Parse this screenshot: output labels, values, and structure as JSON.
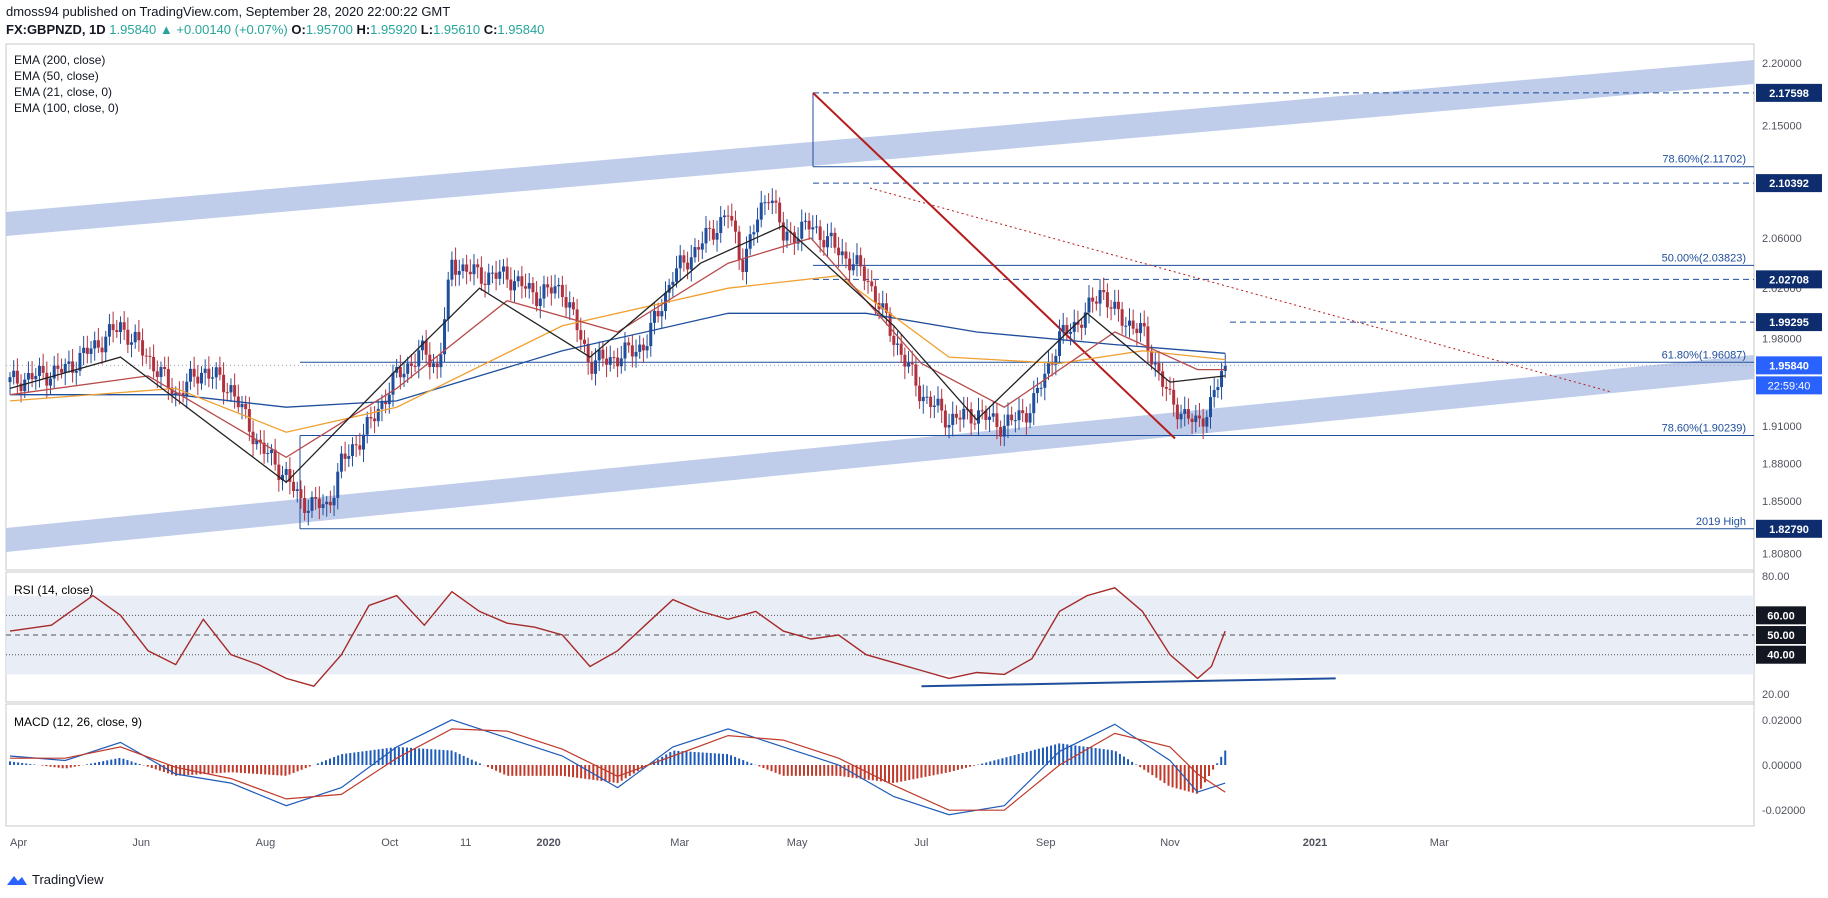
{
  "header": {
    "published_line": "dmoss94 published on TradingView.com, September 28, 2020 22:00:22 GMT",
    "symbol": "FX:GBPNZD, 1D",
    "last": "1.95840",
    "change": "+0.00140 (+0.07%)",
    "open": "1.95700",
    "high": "1.95920",
    "low": "1.95610",
    "close": "1.95840"
  },
  "legend": {
    "main": [
      "EMA (200, close)",
      "EMA (50, close)",
      "EMA (21, close, 0)",
      "EMA (100, close, 0)"
    ],
    "rsi": "RSI (14, close)",
    "macd": "MACD (12, 26, close, 9)"
  },
  "footer": {
    "brand": "TradingView"
  },
  "colors": {
    "candle_up": "#1f4e9c",
    "candle_down": "#b0323e",
    "ema200": "#1f4e9c",
    "ema50": "#b84a4a",
    "ema21": "#222222",
    "ema100": "#f0a030",
    "channel": "#b8c8e8",
    "trendline": "#b71c1c",
    "rsi_line": "#a52a2a",
    "macd_line": "#1e5bb8",
    "signal_line": "#c0392b"
  },
  "chart_data": [
    {
      "type": "line",
      "title": "",
      "price_axis_ticks": [
        "2.20000",
        "2.15000",
        "2.10000",
        "2.06000",
        "2.02000",
        "1.98000",
        "1.94000",
        "1.91000",
        "1.88000",
        "1.85000",
        "1.80800"
      ],
      "price_axis_tick_values": [
        2.2,
        2.15,
        2.1,
        2.06,
        2.02,
        1.98,
        1.94,
        1.91,
        1.88,
        1.85,
        1.808
      ],
      "time_axis_ticks": [
        "Apr",
        "Jun",
        "Aug",
        "Oct",
        "11",
        "2020",
        "Mar",
        "May",
        "Jul",
        "Sep",
        "Nov",
        "2021",
        "Mar"
      ],
      "ylim": [
        1.795,
        2.215
      ],
      "price_labels": [
        {
          "label": "2.17598",
          "value": 2.17598
        },
        {
          "label": "2.10392",
          "value": 2.10392
        },
        {
          "label": "2.02708",
          "value": 2.02708
        },
        {
          "label": "1.99295",
          "value": 1.99295
        },
        {
          "label": "1.95840",
          "value": 1.9584
        },
        {
          "label": "1.82790",
          "value": 1.8279
        }
      ],
      "countdown_label": "22:59:40",
      "fib_levels": [
        {
          "label": "78.60%(2.11702)",
          "value": 2.11702
        },
        {
          "label": "50.00%(2.03823)",
          "value": 2.03823
        },
        {
          "label": "61.80%(1.96087)",
          "value": 1.96087
        },
        {
          "label": "78.60%(1.90239)",
          "value": 1.90239
        },
        {
          "label": "2019 High",
          "value": 1.8279
        }
      ],
      "close_path": [
        [
          0,
          1.945
        ],
        [
          4,
          1.955
        ],
        [
          8,
          1.99
        ],
        [
          10,
          1.965
        ],
        [
          12,
          1.935
        ],
        [
          14,
          1.955
        ],
        [
          16,
          1.94
        ],
        [
          18,
          1.895
        ],
        [
          20,
          1.87
        ],
        [
          21,
          1.85
        ],
        [
          23,
          1.845
        ],
        [
          24,
          1.88
        ],
        [
          26,
          1.91
        ],
        [
          28,
          1.95
        ],
        [
          30,
          1.97
        ],
        [
          31,
          1.955
        ],
        [
          32,
          2.04
        ],
        [
          34,
          2.03
        ],
        [
          36,
          2.03
        ],
        [
          38,
          2.015
        ],
        [
          40,
          2.02
        ],
        [
          41,
          1.99
        ],
        [
          42,
          1.96
        ],
        [
          44,
          1.965
        ],
        [
          46,
          1.975
        ],
        [
          48,
          2.03
        ],
        [
          50,
          2.055
        ],
        [
          52,
          2.08
        ],
        [
          53,
          2.04
        ],
        [
          55,
          2.1
        ],
        [
          56,
          2.06
        ],
        [
          58,
          2.07
        ],
        [
          60,
          2.05
        ],
        [
          62,
          2.03
        ],
        [
          64,
          1.98
        ],
        [
          66,
          1.935
        ],
        [
          68,
          1.915
        ],
        [
          70,
          1.92
        ],
        [
          72,
          1.91
        ],
        [
          74,
          1.925
        ],
        [
          76,
          1.98
        ],
        [
          78,
          2.0
        ],
        [
          79,
          2.02
        ],
        [
          80,
          2.0
        ],
        [
          82,
          1.985
        ],
        [
          84,
          1.93
        ],
        [
          86,
          1.91
        ],
        [
          87,
          1.93
        ],
        [
          88,
          1.958
        ]
      ],
      "x_domain": [
        0,
        126
      ],
      "series": [
        {
          "name": "EMA (200, close)",
          "values": [
            [
              0,
              1.935
            ],
            [
              12,
              1.935
            ],
            [
              20,
              1.925
            ],
            [
              28,
              1.93
            ],
            [
              40,
              1.97
            ],
            [
              52,
              2.0
            ],
            [
              62,
              2.0
            ],
            [
              70,
              1.985
            ],
            [
              80,
              1.975
            ],
            [
              88,
              1.968
            ]
          ]
        },
        {
          "name": "EMA (100, close, 0)",
          "values": [
            [
              0,
              1.93
            ],
            [
              12,
              1.94
            ],
            [
              20,
              1.905
            ],
            [
              28,
              1.925
            ],
            [
              40,
              1.99
            ],
            [
              52,
              2.02
            ],
            [
              60,
              2.03
            ],
            [
              68,
              1.965
            ],
            [
              76,
              1.96
            ],
            [
              82,
              1.97
            ],
            [
              88,
              1.963
            ]
          ]
        },
        {
          "name": "EMA (50, close)",
          "values": [
            [
              0,
              1.935
            ],
            [
              10,
              1.95
            ],
            [
              20,
              1.885
            ],
            [
              28,
              1.94
            ],
            [
              36,
              2.01
            ],
            [
              44,
              1.985
            ],
            [
              52,
              2.04
            ],
            [
              58,
              2.06
            ],
            [
              66,
              1.96
            ],
            [
              72,
              1.925
            ],
            [
              80,
              1.985
            ],
            [
              86,
              1.955
            ],
            [
              88,
              1.955
            ]
          ]
        },
        {
          "name": "EMA (21, close, 0)",
          "values": [
            [
              0,
              1.94
            ],
            [
              8,
              1.965
            ],
            [
              20,
              1.865
            ],
            [
              28,
              1.955
            ],
            [
              34,
              2.02
            ],
            [
              42,
              1.965
            ],
            [
              50,
              2.04
            ],
            [
              56,
              2.07
            ],
            [
              64,
              1.99
            ],
            [
              70,
              1.915
            ],
            [
              78,
              2.0
            ],
            [
              84,
              1.945
            ],
            [
              88,
              1.95
            ]
          ]
        }
      ]
    },
    {
      "type": "line",
      "title": "RSI (14, close)",
      "axis_ticks": [
        "80.00",
        "60.00",
        "50.00",
        "40.00",
        "20.00"
      ],
      "axis_tick_values": [
        80,
        60,
        50,
        40,
        20
      ],
      "ylim": [
        16,
        82
      ],
      "series": [
        {
          "name": "RSI (14, close)",
          "values": [
            [
              0,
              52
            ],
            [
              3,
              55
            ],
            [
              6,
              70
            ],
            [
              8,
              60
            ],
            [
              10,
              42
            ],
            [
              12,
              35
            ],
            [
              14,
              58
            ],
            [
              16,
              40
            ],
            [
              18,
              35
            ],
            [
              20,
              28
            ],
            [
              22,
              24
            ],
            [
              24,
              40
            ],
            [
              26,
              65
            ],
            [
              28,
              70
            ],
            [
              30,
              55
            ],
            [
              32,
              72
            ],
            [
              34,
              62
            ],
            [
              36,
              56
            ],
            [
              38,
              54
            ],
            [
              40,
              50
            ],
            [
              42,
              34
            ],
            [
              44,
              42
            ],
            [
              46,
              55
            ],
            [
              48,
              68
            ],
            [
              50,
              62
            ],
            [
              52,
              58
            ],
            [
              54,
              62
            ],
            [
              56,
              52
            ],
            [
              58,
              48
            ],
            [
              60,
              50
            ],
            [
              62,
              40
            ],
            [
              64,
              36
            ],
            [
              66,
              32
            ],
            [
              68,
              28
            ],
            [
              70,
              31
            ],
            [
              72,
              30
            ],
            [
              74,
              38
            ],
            [
              76,
              62
            ],
            [
              78,
              70
            ],
            [
              80,
              74
            ],
            [
              82,
              62
            ],
            [
              84,
              40
            ],
            [
              86,
              28
            ],
            [
              87,
              34
            ],
            [
              88,
              52
            ]
          ]
        }
      ]
    },
    {
      "type": "line",
      "title": "MACD (12, 26, close, 9)",
      "axis_ticks": [
        "0.02000",
        "0.00000",
        "-0.02000"
      ],
      "axis_tick_values": [
        0.02,
        0,
        -0.02
      ],
      "ylim": [
        -0.027,
        0.027
      ],
      "series": [
        {
          "name": "MACD",
          "values": [
            [
              0,
              0.004
            ],
            [
              4,
              0.002
            ],
            [
              8,
              0.01
            ],
            [
              12,
              -0.004
            ],
            [
              16,
              -0.008
            ],
            [
              20,
              -0.018
            ],
            [
              24,
              -0.01
            ],
            [
              28,
              0.008
            ],
            [
              32,
              0.02
            ],
            [
              36,
              0.012
            ],
            [
              40,
              0.004
            ],
            [
              44,
              -0.01
            ],
            [
              48,
              0.008
            ],
            [
              52,
              0.016
            ],
            [
              56,
              0.008
            ],
            [
              60,
              0.0
            ],
            [
              64,
              -0.014
            ],
            [
              68,
              -0.022
            ],
            [
              72,
              -0.018
            ],
            [
              76,
              0.006
            ],
            [
              80,
              0.018
            ],
            [
              84,
              0.002
            ],
            [
              86,
              -0.012
            ],
            [
              88,
              -0.008
            ]
          ]
        },
        {
          "name": "Signal",
          "values": [
            [
              0,
              0.003
            ],
            [
              4,
              0.003
            ],
            [
              8,
              0.008
            ],
            [
              12,
              -0.001
            ],
            [
              16,
              -0.006
            ],
            [
              20,
              -0.015
            ],
            [
              24,
              -0.013
            ],
            [
              28,
              0.003
            ],
            [
              32,
              0.016
            ],
            [
              36,
              0.015
            ],
            [
              40,
              0.007
            ],
            [
              44,
              -0.005
            ],
            [
              48,
              0.004
            ],
            [
              52,
              0.013
            ],
            [
              56,
              0.011
            ],
            [
              60,
              0.003
            ],
            [
              64,
              -0.009
            ],
            [
              68,
              -0.02
            ],
            [
              72,
              -0.02
            ],
            [
              76,
              0.0
            ],
            [
              80,
              0.014
            ],
            [
              84,
              0.008
            ],
            [
              86,
              -0.004
            ],
            [
              88,
              -0.012
            ]
          ]
        }
      ]
    }
  ]
}
